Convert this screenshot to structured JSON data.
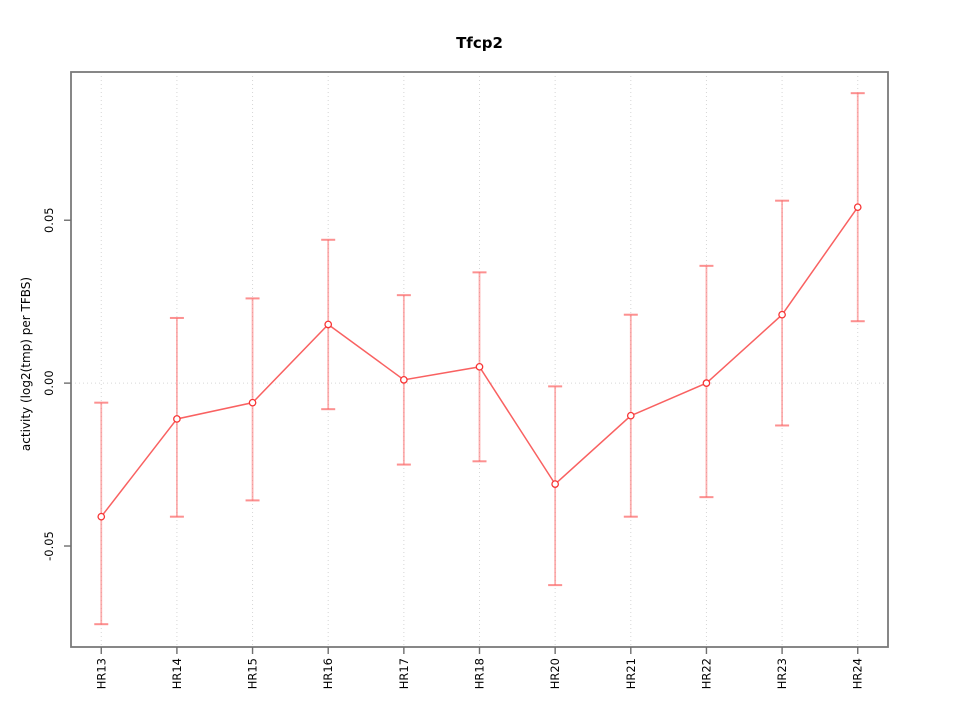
{
  "figure": {
    "background": "#ffffff"
  },
  "chart_data": {
    "type": "line",
    "title": "Tfcp2",
    "xlabel": "",
    "ylabel": "activity (log2(tmp) per TFBS)",
    "categories": [
      "HR13",
      "HR14",
      "HR15",
      "HR16",
      "HR17",
      "HR18",
      "HR20",
      "HR21",
      "HR22",
      "HR23",
      "HR24"
    ],
    "series": [
      {
        "name": "activity",
        "values": [
          -0.041,
          -0.011,
          -0.006,
          0.018,
          0.001,
          0.005,
          -0.031,
          -0.01,
          0.0,
          0.021,
          0.054
        ],
        "error_upper": [
          -0.006,
          0.02,
          0.026,
          0.044,
          0.027,
          0.034,
          -0.001,
          0.021,
          0.036,
          0.056,
          0.089
        ],
        "error_lower": [
          -0.074,
          -0.041,
          -0.036,
          -0.008,
          -0.025,
          -0.024,
          -0.062,
          -0.041,
          -0.035,
          -0.013,
          0.019
        ]
      }
    ],
    "point_style": "open-circle",
    "error_bars": true,
    "yticks": [
      {
        "value": 0.05,
        "label": "0.05"
      },
      {
        "value": 0.0,
        "label": "0.00"
      },
      {
        "value": -0.05,
        "label": "-0.05"
      }
    ],
    "ylim": [
      -0.081,
      0.0955
    ],
    "xlim": [
      0.6,
      11.4
    ],
    "grid": {
      "vertical_dotted_per_category": true,
      "horizontal_dotted_at_zero": true
    },
    "legend": "none",
    "colors": {
      "series_line": "#f84545",
      "point_stroke": "#f73535",
      "error_bar": "#fb6b6b",
      "grid": "#d6d6d6",
      "frame": "#7a7a7a",
      "tick": "#6e6e6e",
      "label_text": "#000000"
    }
  }
}
